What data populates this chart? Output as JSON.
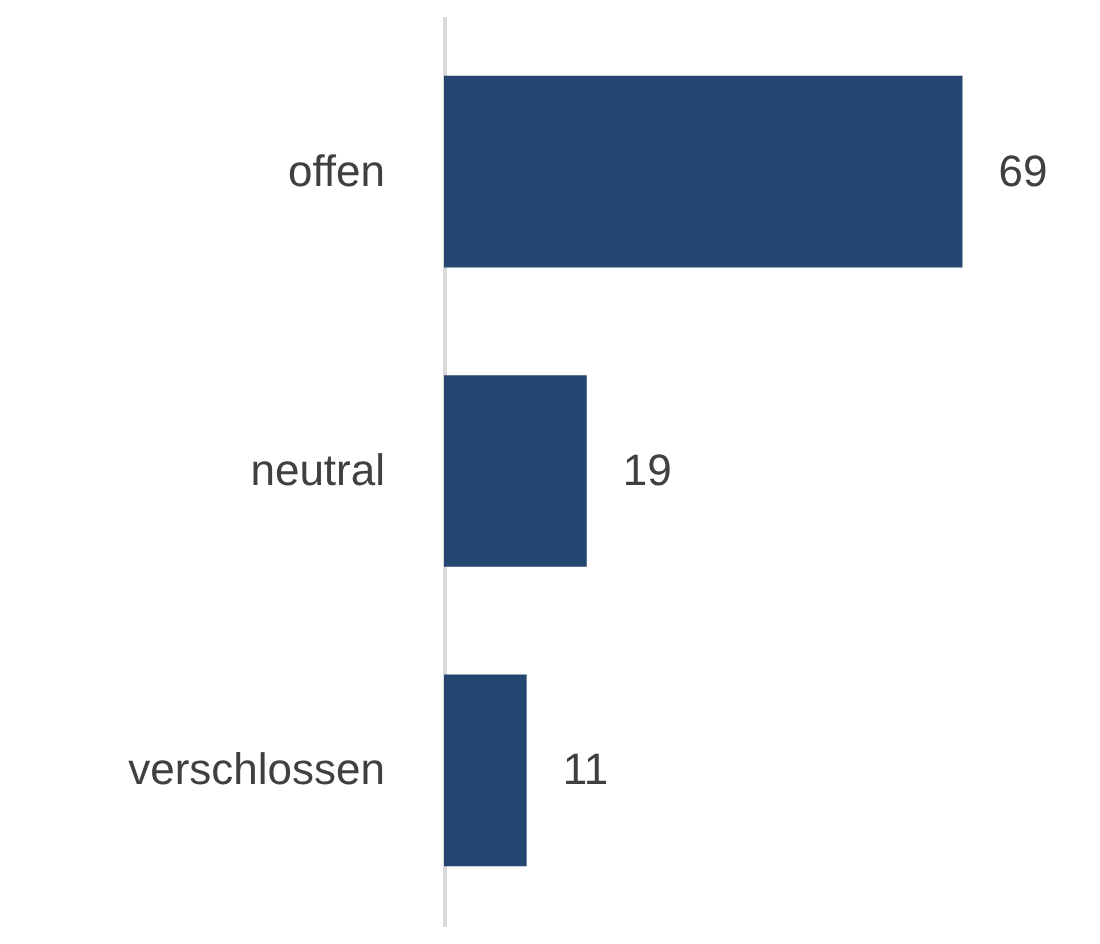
{
  "chart_data": {
    "type": "bar",
    "orientation": "horizontal",
    "categories": [
      "offen",
      "neutral",
      "verschlossen"
    ],
    "values": [
      69,
      19,
      11
    ],
    "color": "#264672",
    "data_labels": true
  }
}
